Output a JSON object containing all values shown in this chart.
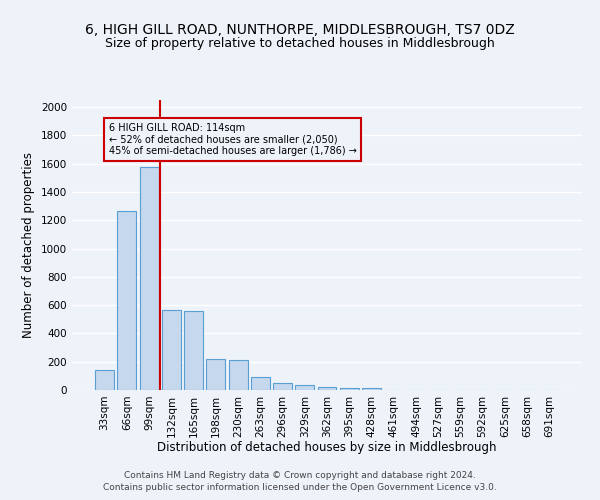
{
  "title": "6, HIGH GILL ROAD, NUNTHORPE, MIDDLESBROUGH, TS7 0DZ",
  "subtitle": "Size of property relative to detached houses in Middlesbrough",
  "xlabel": "Distribution of detached houses by size in Middlesbrough",
  "ylabel": "Number of detached properties",
  "footnote1": "Contains HM Land Registry data © Crown copyright and database right 2024.",
  "footnote2": "Contains public sector information licensed under the Open Government Licence v3.0.",
  "categories": [
    "33sqm",
    "66sqm",
    "99sqm",
    "132sqm",
    "165sqm",
    "198sqm",
    "230sqm",
    "263sqm",
    "296sqm",
    "329sqm",
    "362sqm",
    "395sqm",
    "428sqm",
    "461sqm",
    "494sqm",
    "527sqm",
    "559sqm",
    "592sqm",
    "625sqm",
    "658sqm",
    "691sqm"
  ],
  "values": [
    140,
    1265,
    1575,
    565,
    560,
    220,
    215,
    95,
    50,
    35,
    20,
    15,
    15,
    0,
    0,
    0,
    0,
    0,
    0,
    0,
    0
  ],
  "bar_color": "#c5d8ed",
  "bar_edge_color": "#5a9fd4",
  "property_line_x": 2.5,
  "property_line_color": "#cc0000",
  "annotation_text": "6 HIGH GILL ROAD: 114sqm\n← 52% of detached houses are smaller (2,050)\n45% of semi-detached houses are larger (1,786) →",
  "annotation_box_color": "#cc0000",
  "ylim_max": 2050,
  "background_color": "#eef2f9",
  "grid_color": "#ffffff",
  "title_fontsize": 10,
  "subtitle_fontsize": 9,
  "axis_label_fontsize": 8.5,
  "tick_fontsize": 7.5,
  "footnote_fontsize": 6.5
}
